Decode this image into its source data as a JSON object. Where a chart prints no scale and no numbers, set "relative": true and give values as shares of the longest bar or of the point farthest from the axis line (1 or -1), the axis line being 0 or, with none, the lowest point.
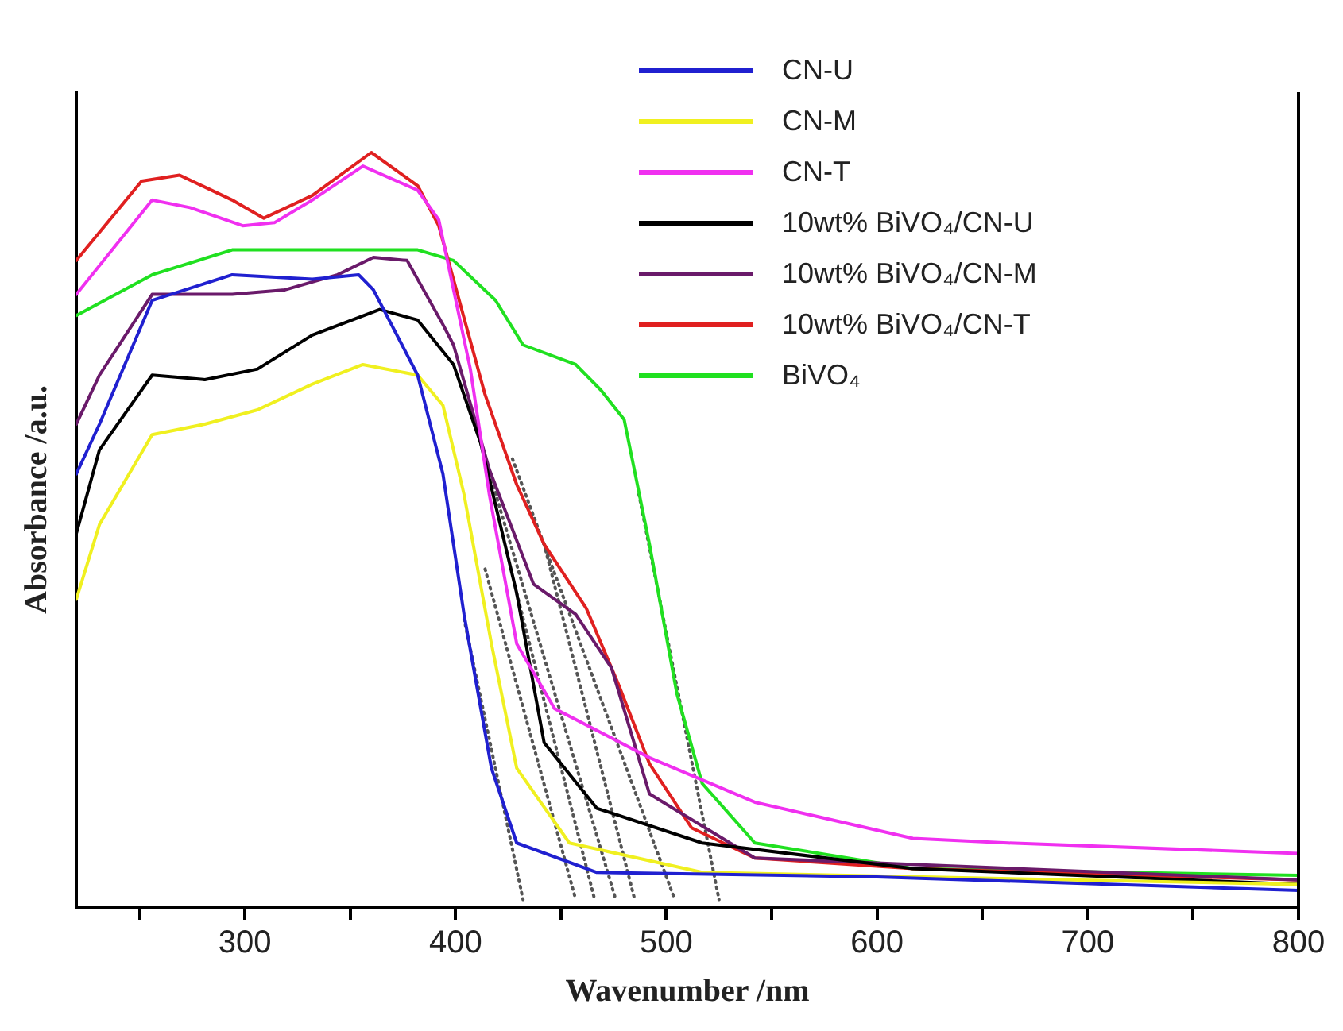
{
  "chart_data": {
    "type": "line",
    "xlabel": "Wavenumber /nm",
    "ylabel": "Absorbance /a.u.",
    "relative": true,
    "xlim": [
      220,
      800
    ],
    "xticks": [
      {
        "value": 250,
        "label": null
      },
      300,
      {
        "value": 350,
        "label": null
      },
      400,
      {
        "value": 450,
        "label": null
      },
      500,
      {
        "value": 550,
        "label": null
      },
      600,
      {
        "value": 650,
        "label": null
      },
      700,
      {
        "value": 750,
        "label": null
      },
      800
    ],
    "grid": false,
    "legend": "top right",
    "marker": "none",
    "line_style": "solid",
    "series": [
      {
        "name": "CN-U",
        "color": "#2020d0",
        "x": [
          220,
          231,
          256,
          294,
          332,
          354,
          361,
          382,
          394,
          404,
          417,
          429,
          467,
          600,
          800
        ],
        "values": [
          0.574,
          0.64,
          0.804,
          0.838,
          0.832,
          0.838,
          0.818,
          0.705,
          0.574,
          0.388,
          0.184,
          0.085,
          0.046,
          0.04,
          0.022
        ]
      },
      {
        "name": "CN-M",
        "color": "#f0f020",
        "x": [
          220,
          231,
          256,
          281,
          306,
          332,
          356,
          382,
          394,
          404,
          417,
          429,
          454,
          517,
          800
        ],
        "values": [
          0.408,
          0.507,
          0.626,
          0.64,
          0.659,
          0.693,
          0.719,
          0.705,
          0.665,
          0.547,
          0.349,
          0.184,
          0.085,
          0.046,
          0.03
        ]
      },
      {
        "name": "CN-T",
        "color": "#f030f0",
        "x": [
          220,
          256,
          274,
          299,
          314,
          332,
          356,
          382,
          392,
          407,
          416,
          429,
          447,
          492,
          542,
          617,
          662,
          800
        ],
        "values": [
          0.812,
          0.937,
          0.927,
          0.903,
          0.907,
          0.937,
          0.982,
          0.95,
          0.911,
          0.713,
          0.547,
          0.349,
          0.263,
          0.198,
          0.139,
          0.091,
          0.085,
          0.071
        ]
      },
      {
        "name": "10wt% BiVO₄/CN-U",
        "color": "#000000",
        "x": [
          220,
          231,
          256,
          281,
          306,
          332,
          364,
          382,
          399,
          412,
          429,
          442,
          467,
          517,
          617,
          800
        ],
        "values": [
          0.495,
          0.606,
          0.705,
          0.699,
          0.713,
          0.758,
          0.792,
          0.778,
          0.719,
          0.614,
          0.416,
          0.218,
          0.131,
          0.085,
          0.051,
          0.03
        ]
      },
      {
        "name": "10wt% BiVO₄/CN-M",
        "color": "#6a1a6a",
        "x": [
          220,
          231,
          256,
          294,
          319,
          344,
          361,
          377,
          394,
          399,
          416,
          437,
          457,
          474,
          492,
          542,
          800
        ],
        "values": [
          0.64,
          0.705,
          0.812,
          0.812,
          0.818,
          0.838,
          0.861,
          0.857,
          0.772,
          0.745,
          0.58,
          0.428,
          0.388,
          0.317,
          0.15,
          0.065,
          0.036
        ]
      },
      {
        "name": "10wt% BiVO₄/CN-T",
        "color": "#e02020",
        "x": [
          220,
          251,
          269,
          294,
          309,
          332,
          360,
          382,
          392,
          414,
          429,
          442,
          462,
          477,
          492,
          512,
          542,
          617,
          800
        ],
        "values": [
          0.857,
          0.962,
          0.97,
          0.937,
          0.913,
          0.943,
          1.0,
          0.956,
          0.903,
          0.679,
          0.56,
          0.481,
          0.396,
          0.297,
          0.19,
          0.105,
          0.065,
          0.051,
          0.036
        ]
      },
      {
        "name": "BiVO₄",
        "color": "#20e020",
        "x": [
          220,
          256,
          294,
          344,
          382,
          399,
          419,
          432,
          457,
          469,
          480,
          492,
          505,
          517,
          542,
          617,
          800
        ],
        "values": [
          0.784,
          0.838,
          0.871,
          0.871,
          0.871,
          0.857,
          0.804,
          0.745,
          0.719,
          0.685,
          0.646,
          0.481,
          0.283,
          0.164,
          0.085,
          0.051,
          0.042
        ]
      },
      {
        "color": "#555555",
        "line_style": "dotted",
        "x": [
          404,
          432
        ],
        "values": [
          0.382,
          0.01
        ]
      },
      {
        "color": "#555555",
        "line_style": "dotted",
        "x": [
          414,
          457
        ],
        "values": [
          0.448,
          0.01
        ]
      },
      {
        "color": "#555555",
        "line_style": "dotted",
        "x": [
          412,
          476
        ],
        "values": [
          0.614,
          0.01
        ]
      },
      {
        "color": "#555555",
        "line_style": "dotted",
        "x": [
          429,
          466
        ],
        "values": [
          0.416,
          0.01
        ]
      },
      {
        "color": "#555555",
        "line_style": "dotted",
        "x": [
          442,
          485
        ],
        "values": [
          0.481,
          0.01
        ]
      },
      {
        "color": "#555555",
        "line_style": "dotted",
        "x": [
          427,
          504
        ],
        "values": [
          0.594,
          0.01
        ]
      },
      {
        "color": "#555555",
        "line_style": "dotted",
        "x": [
          487,
          525
        ],
        "values": [
          0.547,
          0.01
        ]
      }
    ]
  }
}
